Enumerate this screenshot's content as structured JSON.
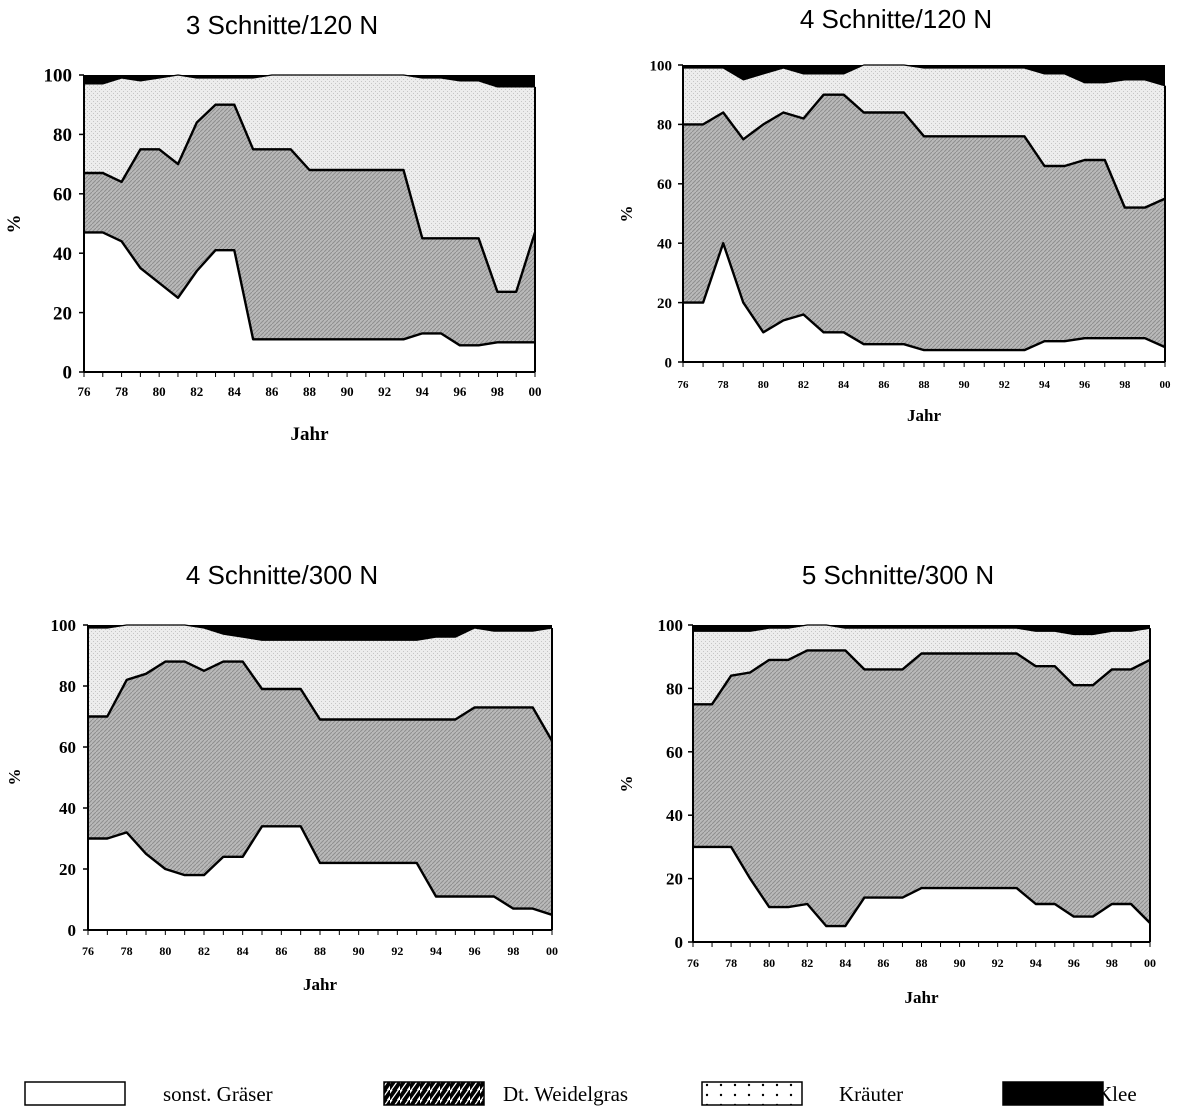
{
  "chart_data": [
    {
      "type": "area",
      "stacked": true,
      "title": "3 Schnitte/120 N",
      "xlabel": "Jahr",
      "ylabel": "%",
      "ylim": [
        0,
        100
      ],
      "xlim": [
        1976,
        2000
      ],
      "x_tick_labels": [
        "76",
        "78",
        "80",
        "82",
        "84",
        "86",
        "88",
        "90",
        "92",
        "94",
        "96",
        "98",
        "00"
      ],
      "y_tick_labels": [
        "0",
        "20",
        "40",
        "60",
        "80",
        "100"
      ],
      "x": [
        1976,
        1977,
        1978,
        1979,
        1980,
        1981,
        1982,
        1983,
        1984,
        1985,
        1986,
        1987,
        1988,
        1989,
        1990,
        1991,
        1992,
        1993,
        1994,
        1995,
        1996,
        1997,
        1998,
        1999,
        2000
      ],
      "series": [
        {
          "name": "sonst. Gräser",
          "values": [
            47,
            47,
            44,
            35,
            30,
            25,
            34,
            41,
            41,
            11,
            11,
            11,
            11,
            11,
            11,
            11,
            11,
            11,
            13,
            13,
            9,
            9,
            10,
            10,
            10
          ]
        },
        {
          "name": "Dt. Weidelgras",
          "values": [
            20,
            20,
            20,
            40,
            45,
            45,
            50,
            49,
            49,
            64,
            64,
            64,
            57,
            57,
            57,
            57,
            57,
            57,
            32,
            32,
            36,
            36,
            17,
            17,
            37
          ]
        },
        {
          "name": "Kräuter",
          "values": [
            30,
            30,
            35,
            23,
            24,
            30,
            15,
            9,
            9,
            24,
            25,
            25,
            32,
            32,
            32,
            32,
            32,
            32,
            54,
            54,
            53,
            53,
            69,
            69,
            49
          ]
        },
        {
          "name": "Klee",
          "values": [
            3,
            3,
            1,
            2,
            1,
            0,
            1,
            1,
            1,
            1,
            0,
            0,
            0,
            0,
            0,
            0,
            0,
            0,
            1,
            1,
            2,
            2,
            4,
            4,
            4
          ]
        }
      ]
    },
    {
      "type": "area",
      "stacked": true,
      "title": "4 Schnitte/120 N",
      "xlabel": "Jahr",
      "ylabel": "%",
      "ylim": [
        0,
        100
      ],
      "xlim": [
        1976,
        2000
      ],
      "x_tick_labels": [
        "76",
        "78",
        "80",
        "82",
        "84",
        "86",
        "88",
        "90",
        "92",
        "94",
        "96",
        "98",
        "00"
      ],
      "y_tick_labels": [
        "0",
        "20",
        "40",
        "60",
        "80",
        "100"
      ],
      "x": [
        1976,
        1977,
        1978,
        1979,
        1980,
        1981,
        1982,
        1983,
        1984,
        1985,
        1986,
        1987,
        1988,
        1989,
        1990,
        1991,
        1992,
        1993,
        1994,
        1995,
        1996,
        1997,
        1998,
        1999,
        2000
      ],
      "series": [
        {
          "name": "sonst. Gräser",
          "values": [
            20,
            20,
            40,
            20,
            10,
            14,
            16,
            10,
            10,
            6,
            6,
            6,
            4,
            4,
            4,
            4,
            4,
            4,
            7,
            7,
            8,
            8,
            8,
            8,
            5
          ]
        },
        {
          "name": "Dt. Weidelgras",
          "values": [
            60,
            60,
            44,
            55,
            70,
            70,
            66,
            80,
            80,
            78,
            78,
            78,
            72,
            72,
            72,
            72,
            72,
            72,
            59,
            59,
            60,
            60,
            44,
            44,
            50
          ]
        },
        {
          "name": "Kräuter",
          "values": [
            19,
            19,
            15,
            20,
            17,
            15,
            15,
            7,
            7,
            16,
            16,
            16,
            23,
            23,
            23,
            23,
            23,
            23,
            31,
            31,
            26,
            26,
            43,
            43,
            38
          ]
        },
        {
          "name": "Klee",
          "values": [
            1,
            1,
            1,
            5,
            3,
            1,
            3,
            3,
            3,
            0,
            0,
            0,
            1,
            1,
            1,
            1,
            1,
            1,
            3,
            3,
            6,
            6,
            5,
            5,
            7
          ]
        }
      ]
    },
    {
      "type": "area",
      "stacked": true,
      "title": "4 Schnitte/300 N",
      "xlabel": "Jahr",
      "ylabel": "%",
      "ylim": [
        0,
        100
      ],
      "xlim": [
        1976,
        2000
      ],
      "x_tick_labels": [
        "76",
        "78",
        "80",
        "82",
        "84",
        "86",
        "88",
        "90",
        "92",
        "94",
        "96",
        "98",
        "00"
      ],
      "y_tick_labels": [
        "0",
        "20",
        "40",
        "60",
        "80",
        "100"
      ],
      "x": [
        1976,
        1977,
        1978,
        1979,
        1980,
        1981,
        1982,
        1983,
        1984,
        1985,
        1986,
        1987,
        1988,
        1989,
        1990,
        1991,
        1992,
        1993,
        1994,
        1995,
        1996,
        1997,
        1998,
        1999,
        2000
      ],
      "series": [
        {
          "name": "sonst. Gräser",
          "values": [
            30,
            30,
            32,
            25,
            20,
            18,
            18,
            24,
            24,
            34,
            34,
            34,
            22,
            22,
            22,
            22,
            22,
            22,
            11,
            11,
            11,
            11,
            7,
            7,
            5
          ]
        },
        {
          "name": "Dt. Weidelgras",
          "values": [
            40,
            40,
            50,
            59,
            68,
            70,
            67,
            64,
            64,
            45,
            45,
            45,
            47,
            47,
            47,
            47,
            47,
            47,
            58,
            58,
            62,
            62,
            66,
            66,
            57
          ]
        },
        {
          "name": "Kräuter",
          "values": [
            29,
            29,
            18,
            16,
            12,
            12,
            14,
            9,
            8,
            16,
            16,
            16,
            26,
            26,
            26,
            26,
            26,
            26,
            27,
            27,
            26,
            25,
            25,
            25,
            37
          ]
        },
        {
          "name": "Klee",
          "values": [
            1,
            1,
            0,
            0,
            0,
            0,
            1,
            3,
            4,
            5,
            5,
            5,
            5,
            5,
            5,
            5,
            5,
            5,
            4,
            4,
            1,
            2,
            2,
            2,
            1
          ]
        }
      ]
    },
    {
      "type": "area",
      "stacked": true,
      "title": "5 Schnitte/300 N",
      "xlabel": "Jahr",
      "ylabel": "%",
      "ylim": [
        0,
        100
      ],
      "xlim": [
        1976,
        2000
      ],
      "x_tick_labels": [
        "76",
        "78",
        "80",
        "82",
        "84",
        "86",
        "88",
        "90",
        "92",
        "94",
        "96",
        "98",
        "00"
      ],
      "y_tick_labels": [
        "0",
        "20",
        "40",
        "60",
        "80",
        "100"
      ],
      "x": [
        1976,
        1977,
        1978,
        1979,
        1980,
        1981,
        1982,
        1983,
        1984,
        1985,
        1986,
        1987,
        1988,
        1989,
        1990,
        1991,
        1992,
        1993,
        1994,
        1995,
        1996,
        1997,
        1998,
        1999,
        2000
      ],
      "series": [
        {
          "name": "sonst. Gräser",
          "values": [
            30,
            30,
            30,
            20,
            11,
            11,
            12,
            5,
            5,
            14,
            14,
            14,
            17,
            17,
            17,
            17,
            17,
            17,
            12,
            12,
            8,
            8,
            12,
            12,
            6
          ]
        },
        {
          "name": "Dt. Weidelgras",
          "values": [
            45,
            45,
            54,
            65,
            78,
            78,
            80,
            87,
            87,
            72,
            72,
            72,
            74,
            74,
            74,
            74,
            74,
            74,
            75,
            75,
            73,
            73,
            74,
            74,
            83
          ]
        },
        {
          "name": "Kräuter",
          "values": [
            23,
            23,
            14,
            13,
            10,
            10,
            8,
            8,
            7,
            13,
            13,
            13,
            8,
            8,
            8,
            8,
            8,
            8,
            11,
            11,
            16,
            16,
            12,
            12,
            10
          ]
        },
        {
          "name": "Klee",
          "values": [
            2,
            2,
            2,
            2,
            1,
            1,
            0,
            0,
            1,
            1,
            1,
            1,
            1,
            1,
            1,
            1,
            1,
            1,
            2,
            2,
            3,
            3,
            2,
            2,
            1
          ]
        }
      ]
    }
  ],
  "legend": {
    "items": [
      {
        "label": "sonst. Gräser",
        "swatch": "plain"
      },
      {
        "label": "Dt. Weidelgras",
        "swatch": "hatch"
      },
      {
        "label": "Kräuter",
        "swatch": "dots"
      },
      {
        "label": "Klee",
        "swatch": "solid"
      }
    ]
  },
  "colors": {
    "sonst_graeser": "#ffffff",
    "weidelgras_fill": "#b4b4b4",
    "kraeuter_fill": "#e8e8e8",
    "klee": "#000000",
    "line": "#000000"
  }
}
